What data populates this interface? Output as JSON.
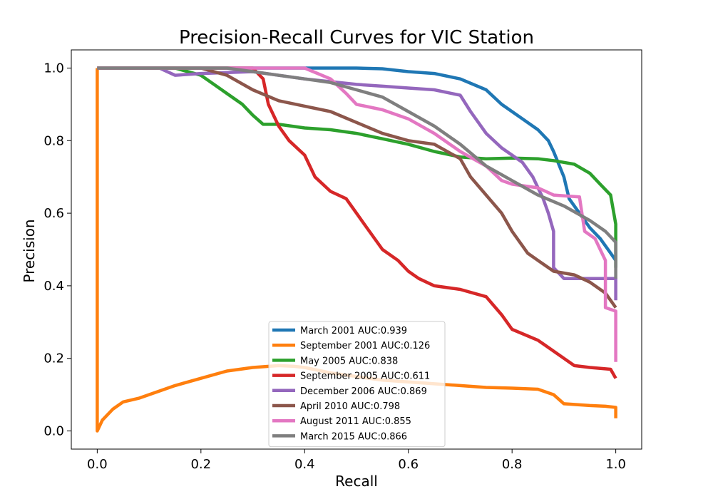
{
  "chart_data": {
    "type": "line",
    "title": "Precision-Recall Curves for VIC Station",
    "xlabel": "Recall",
    "ylabel": "Precision",
    "xlim": [
      -0.05,
      1.05
    ],
    "ylim": [
      -0.05,
      1.05
    ],
    "xticks": [
      0.0,
      0.2,
      0.4,
      0.6,
      0.8,
      1.0
    ],
    "yticks": [
      0.0,
      0.2,
      0.4,
      0.6,
      0.8,
      1.0
    ],
    "x_tick_labels": [
      "0.0",
      "0.2",
      "0.4",
      "0.6",
      "0.8",
      "1.0"
    ],
    "y_tick_labels": [
      "0.0",
      "0.2",
      "0.4",
      "0.6",
      "0.8",
      "1.0"
    ],
    "grid": false,
    "legend_position": "lower-center",
    "series": [
      {
        "name": "March 2001 AUC:0.939",
        "color": "#1f77b4",
        "points": [
          [
            0,
            1
          ],
          [
            0.2,
            1
          ],
          [
            0.4,
            1
          ],
          [
            0.5,
            1
          ],
          [
            0.55,
            0.998
          ],
          [
            0.6,
            0.99
          ],
          [
            0.65,
            0.985
          ],
          [
            0.7,
            0.97
          ],
          [
            0.75,
            0.94
          ],
          [
            0.78,
            0.9
          ],
          [
            0.82,
            0.86
          ],
          [
            0.85,
            0.83
          ],
          [
            0.87,
            0.8
          ],
          [
            0.88,
            0.77
          ],
          [
            0.9,
            0.7
          ],
          [
            0.91,
            0.64
          ],
          [
            0.93,
            0.6
          ],
          [
            0.95,
            0.56
          ],
          [
            0.97,
            0.53
          ],
          [
            0.99,
            0.49
          ],
          [
            1.0,
            0.47
          ]
        ]
      },
      {
        "name": "September 2001 AUC:0.126",
        "color": "#ff7f0e",
        "points": [
          [
            0,
            1
          ],
          [
            0,
            0
          ],
          [
            0.01,
            0.03
          ],
          [
            0.03,
            0.06
          ],
          [
            0.05,
            0.08
          ],
          [
            0.08,
            0.09
          ],
          [
            0.1,
            0.1
          ],
          [
            0.15,
            0.125
          ],
          [
            0.2,
            0.145
          ],
          [
            0.25,
            0.165
          ],
          [
            0.3,
            0.175
          ],
          [
            0.35,
            0.18
          ],
          [
            0.38,
            0.178
          ],
          [
            0.4,
            0.175
          ],
          [
            0.45,
            0.16
          ],
          [
            0.5,
            0.15
          ],
          [
            0.55,
            0.14
          ],
          [
            0.6,
            0.135
          ],
          [
            0.65,
            0.13
          ],
          [
            0.7,
            0.125
          ],
          [
            0.75,
            0.12
          ],
          [
            0.8,
            0.118
          ],
          [
            0.85,
            0.115
          ],
          [
            0.88,
            0.1
          ],
          [
            0.9,
            0.075
          ],
          [
            0.95,
            0.07
          ],
          [
            0.98,
            0.068
          ],
          [
            1.0,
            0.065
          ],
          [
            1.0,
            0.035
          ]
        ]
      },
      {
        "name": "May 2005 AUC:0.838",
        "color": "#2ca02c",
        "points": [
          [
            0,
            1
          ],
          [
            0.15,
            1
          ],
          [
            0.2,
            0.98
          ],
          [
            0.22,
            0.96
          ],
          [
            0.25,
            0.93
          ],
          [
            0.28,
            0.9
          ],
          [
            0.3,
            0.87
          ],
          [
            0.32,
            0.845
          ],
          [
            0.35,
            0.845
          ],
          [
            0.4,
            0.835
          ],
          [
            0.45,
            0.83
          ],
          [
            0.5,
            0.82
          ],
          [
            0.55,
            0.805
          ],
          [
            0.6,
            0.79
          ],
          [
            0.65,
            0.77
          ],
          [
            0.7,
            0.755
          ],
          [
            0.75,
            0.75
          ],
          [
            0.8,
            0.752
          ],
          [
            0.85,
            0.75
          ],
          [
            0.88,
            0.745
          ],
          [
            0.9,
            0.74
          ],
          [
            0.92,
            0.735
          ],
          [
            0.95,
            0.71
          ],
          [
            0.97,
            0.68
          ],
          [
            0.99,
            0.65
          ],
          [
            1.0,
            0.57
          ],
          [
            1.0,
            0.45
          ]
        ]
      },
      {
        "name": "September 2005 AUC:0.611",
        "color": "#d62728",
        "points": [
          [
            0,
            1
          ],
          [
            0.3,
            1
          ],
          [
            0.32,
            0.97
          ],
          [
            0.33,
            0.9
          ],
          [
            0.35,
            0.84
          ],
          [
            0.37,
            0.8
          ],
          [
            0.4,
            0.76
          ],
          [
            0.42,
            0.7
          ],
          [
            0.45,
            0.66
          ],
          [
            0.48,
            0.64
          ],
          [
            0.5,
            0.6
          ],
          [
            0.52,
            0.56
          ],
          [
            0.55,
            0.5
          ],
          [
            0.58,
            0.47
          ],
          [
            0.6,
            0.44
          ],
          [
            0.62,
            0.42
          ],
          [
            0.65,
            0.4
          ],
          [
            0.7,
            0.39
          ],
          [
            0.75,
            0.37
          ],
          [
            0.78,
            0.32
          ],
          [
            0.8,
            0.28
          ],
          [
            0.85,
            0.25
          ],
          [
            0.9,
            0.2
          ],
          [
            0.92,
            0.18
          ],
          [
            0.95,
            0.175
          ],
          [
            0.99,
            0.17
          ],
          [
            1.0,
            0.145
          ]
        ]
      },
      {
        "name": "December 2006 AUC:0.869",
        "color": "#9467bd",
        "points": [
          [
            0,
            1
          ],
          [
            0.12,
            1
          ],
          [
            0.15,
            0.98
          ],
          [
            0.2,
            0.985
          ],
          [
            0.3,
            0.99
          ],
          [
            0.4,
            0.97
          ],
          [
            0.5,
            0.955
          ],
          [
            0.55,
            0.95
          ],
          [
            0.6,
            0.945
          ],
          [
            0.65,
            0.94
          ],
          [
            0.7,
            0.925
          ],
          [
            0.72,
            0.88
          ],
          [
            0.75,
            0.82
          ],
          [
            0.78,
            0.78
          ],
          [
            0.8,
            0.76
          ],
          [
            0.82,
            0.74
          ],
          [
            0.84,
            0.7
          ],
          [
            0.86,
            0.64
          ],
          [
            0.87,
            0.6
          ],
          [
            0.88,
            0.55
          ],
          [
            0.88,
            0.45
          ],
          [
            0.9,
            0.42
          ],
          [
            1.0,
            0.42
          ],
          [
            1.0,
            0.36
          ]
        ]
      },
      {
        "name": "April 2010 AUC:0.798",
        "color": "#8c564b",
        "points": [
          [
            0,
            1
          ],
          [
            0.2,
            1
          ],
          [
            0.25,
            0.98
          ],
          [
            0.3,
            0.94
          ],
          [
            0.35,
            0.91
          ],
          [
            0.4,
            0.895
          ],
          [
            0.45,
            0.88
          ],
          [
            0.5,
            0.85
          ],
          [
            0.55,
            0.82
          ],
          [
            0.6,
            0.8
          ],
          [
            0.65,
            0.79
          ],
          [
            0.7,
            0.75
          ],
          [
            0.72,
            0.7
          ],
          [
            0.75,
            0.65
          ],
          [
            0.78,
            0.6
          ],
          [
            0.8,
            0.55
          ],
          [
            0.83,
            0.49
          ],
          [
            0.85,
            0.47
          ],
          [
            0.88,
            0.44
          ],
          [
            0.92,
            0.43
          ],
          [
            0.95,
            0.41
          ],
          [
            0.98,
            0.38
          ],
          [
            1.0,
            0.34
          ]
        ]
      },
      {
        "name": "August 2011 AUC:0.855",
        "color": "#e377c2",
        "points": [
          [
            0,
            1
          ],
          [
            0.4,
            1
          ],
          [
            0.45,
            0.97
          ],
          [
            0.48,
            0.93
          ],
          [
            0.5,
            0.9
          ],
          [
            0.55,
            0.885
          ],
          [
            0.6,
            0.86
          ],
          [
            0.65,
            0.82
          ],
          [
            0.7,
            0.77
          ],
          [
            0.75,
            0.73
          ],
          [
            0.78,
            0.69
          ],
          [
            0.8,
            0.68
          ],
          [
            0.85,
            0.67
          ],
          [
            0.88,
            0.65
          ],
          [
            0.93,
            0.645
          ],
          [
            0.94,
            0.55
          ],
          [
            0.96,
            0.53
          ],
          [
            0.97,
            0.5
          ],
          [
            0.98,
            0.47
          ],
          [
            0.98,
            0.34
          ],
          [
            1.0,
            0.33
          ],
          [
            1.0,
            0.19
          ]
        ]
      },
      {
        "name": "March 2015 AUC:0.866",
        "color": "#7f7f7f",
        "points": [
          [
            0,
            1
          ],
          [
            0.25,
            1
          ],
          [
            0.3,
            0.99
          ],
          [
            0.4,
            0.97
          ],
          [
            0.45,
            0.96
          ],
          [
            0.5,
            0.94
          ],
          [
            0.55,
            0.92
          ],
          [
            0.6,
            0.88
          ],
          [
            0.65,
            0.84
          ],
          [
            0.7,
            0.79
          ],
          [
            0.75,
            0.73
          ],
          [
            0.8,
            0.69
          ],
          [
            0.85,
            0.65
          ],
          [
            0.9,
            0.62
          ],
          [
            0.95,
            0.58
          ],
          [
            0.98,
            0.55
          ],
          [
            1.0,
            0.52
          ],
          [
            1.0,
            0.42
          ]
        ]
      }
    ]
  }
}
